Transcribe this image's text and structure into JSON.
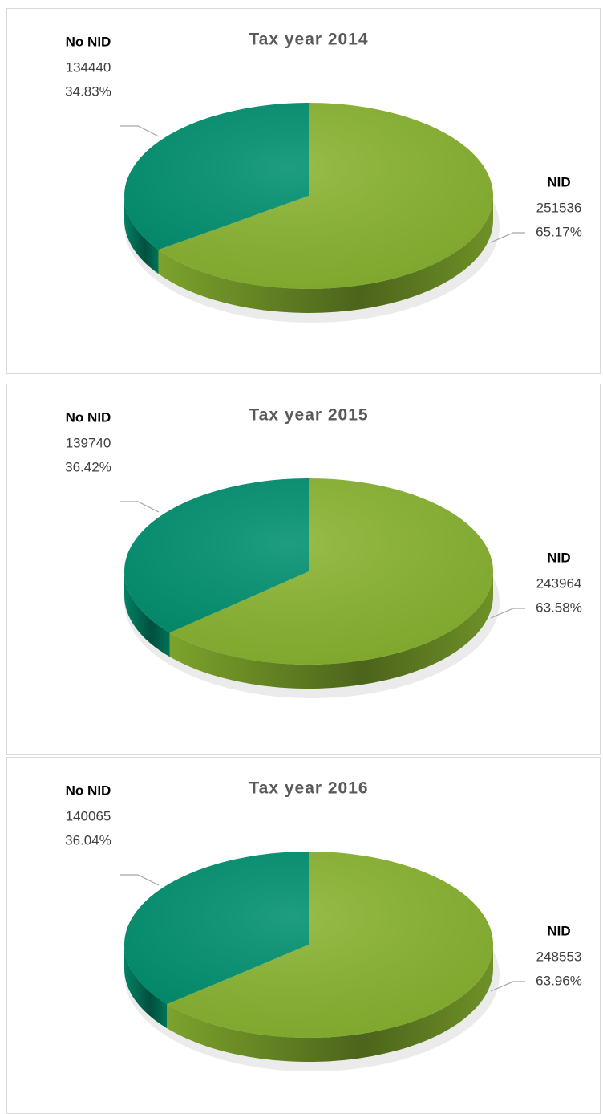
{
  "chart_data": [
    {
      "type": "pie",
      "title": "Tax year 2014",
      "categories": [
        "NID",
        "No NID"
      ],
      "values": [
        251536,
        134440
      ],
      "percentages": [
        65.17,
        34.83
      ],
      "percentage_labels": [
        "65.17%",
        "34.83%"
      ],
      "colors": [
        "#8ab531",
        "#00906f"
      ]
    },
    {
      "type": "pie",
      "title": "Tax year 2015",
      "categories": [
        "NID",
        "No NID"
      ],
      "values": [
        243964,
        139740
      ],
      "percentages": [
        63.58,
        36.42
      ],
      "percentage_labels": [
        "63.58%",
        "36.42%"
      ],
      "colors": [
        "#8ab531",
        "#00906f"
      ]
    },
    {
      "type": "pie",
      "title": "Tax year 2016",
      "categories": [
        "NID",
        "No NID"
      ],
      "values": [
        248553,
        140065
      ],
      "percentages": [
        63.96,
        36.04
      ],
      "percentage_labels": [
        "63.96%",
        "36.04%"
      ],
      "colors": [
        "#8ab531",
        "#00906f"
      ]
    }
  ]
}
